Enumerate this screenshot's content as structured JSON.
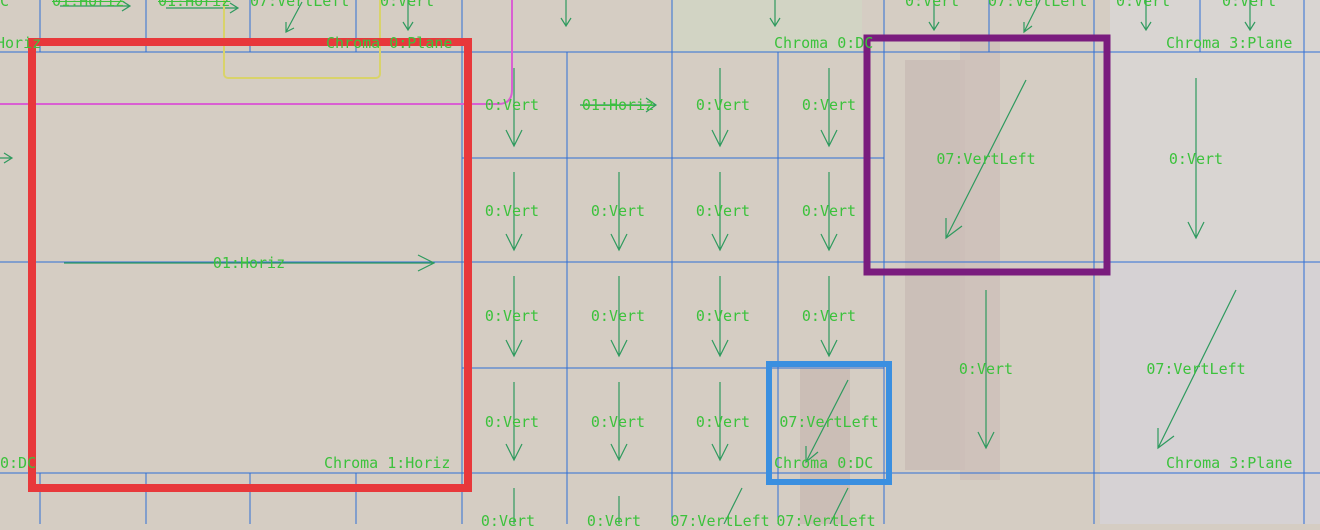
{
  "colors": {
    "background": "#d5cdc3",
    "grid_line": "#2f6fd6",
    "mode_label": "#3cc23c",
    "arrow": "#2e9a5e",
    "highlight_red": "#e8383b",
    "highlight_purple": "#7a1c7e",
    "highlight_blue": "#3a8fe0",
    "highlight_yellow": "#d9d36a",
    "highlight_magenta": "#d95fd2"
  },
  "top_row": {
    "labels": [
      "C",
      "01:Horiz",
      "01:Horiz",
      "07:VertLeft",
      "0:Vert",
      "0:Vert",
      "07:VertLeft",
      "0:Vert",
      "0:Vert"
    ],
    "chroma_labels": [
      "Chroma 0:Plane",
      "Chroma 0:DC",
      "Chroma 3:Plane"
    ],
    "left_edge_label": "Horiz"
  },
  "big_block": {
    "mode": "01:Horiz",
    "chroma": "Chroma 1:Horiz",
    "left_edge_label": "0:DC"
  },
  "grid_cells": [
    [
      "0:Vert",
      "01:Horiz",
      "0:Vert",
      "0:Vert"
    ],
    [
      "0:Vert",
      "0:Vert",
      "0:Vert",
      "0:Vert"
    ],
    [
      "0:Vert",
      "0:Vert",
      "0:Vert",
      "0:Vert"
    ],
    [
      "0:Vert",
      "0:Vert",
      "0:Vert",
      "07:VertLeft"
    ]
  ],
  "grid_chroma_label": "Chroma 0:DC",
  "bottom_row": [
    "0:Vert",
    "0:Vert",
    "07:VertLeft",
    "07:VertLeft"
  ],
  "right_blocks": {
    "top_left": "07:VertLeft",
    "top_right": "0:Vert",
    "bottom_left": "0:Vert",
    "bottom_right": "07:VertLeft",
    "chroma": "Chroma 3:Plane"
  }
}
